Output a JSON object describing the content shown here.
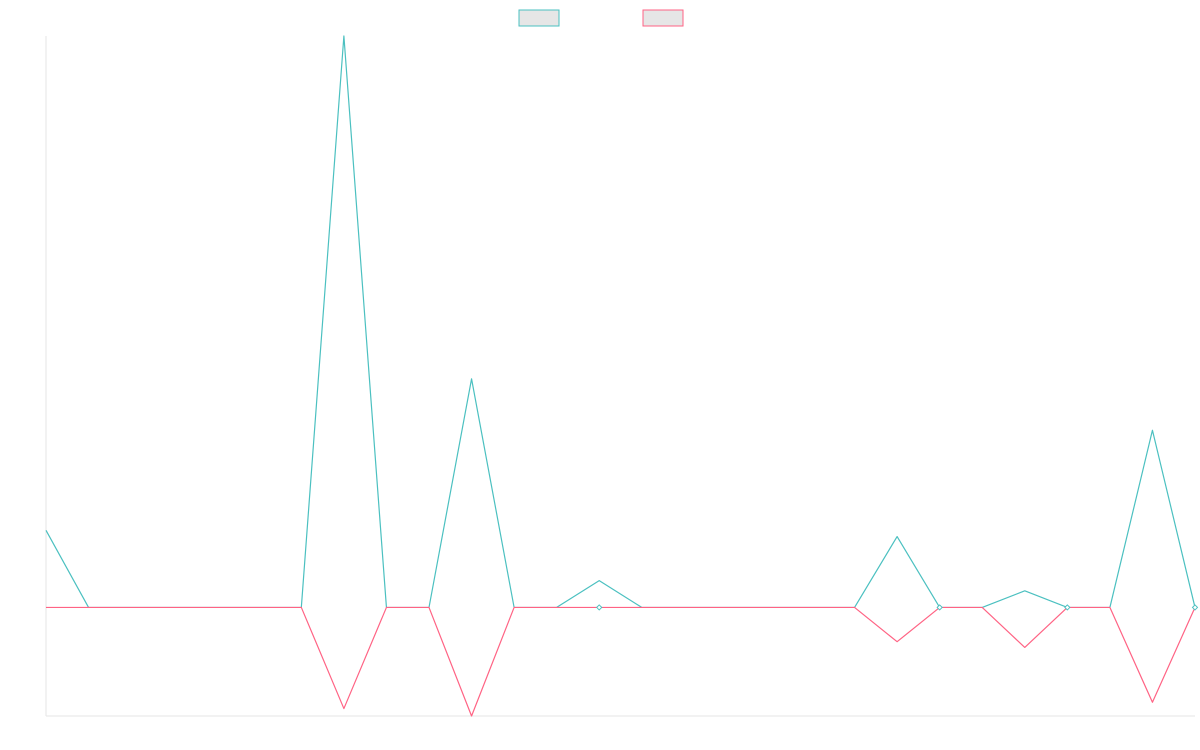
{
  "chart_data": {
    "type": "line",
    "title": "",
    "xlabel": "",
    "ylabel": "",
    "x": [
      0,
      1,
      2,
      3,
      4,
      5,
      6,
      7,
      8,
      9,
      10,
      11,
      12,
      13,
      14,
      15,
      16,
      17,
      18,
      19,
      20,
      21,
      22,
      23,
      24,
      25,
      26,
      27
    ],
    "ylim": [
      -19,
      100
    ],
    "grid": false,
    "legend": {
      "position": "top-center"
    },
    "series": [
      {
        "name": "",
        "color": "#4bc0c0",
        "fill": "#e6e6e6",
        "values": [
          13.5,
          0,
          0,
          0,
          0,
          0,
          0,
          100,
          0,
          0,
          40,
          0,
          0,
          4.7,
          0,
          0,
          0,
          0,
          0,
          0,
          12.4,
          0,
          0,
          2.9,
          0,
          0,
          31,
          0
        ]
      },
      {
        "name": "",
        "color": "#ff6384",
        "fill": "#e6e6e6",
        "values": [
          0,
          0,
          0,
          0,
          0,
          0,
          0,
          -17.7,
          0,
          0,
          -19,
          0,
          0,
          0,
          0,
          0,
          0,
          0,
          0,
          0,
          -6,
          0,
          0,
          -7,
          0,
          0,
          -16.6,
          0
        ]
      }
    ]
  }
}
